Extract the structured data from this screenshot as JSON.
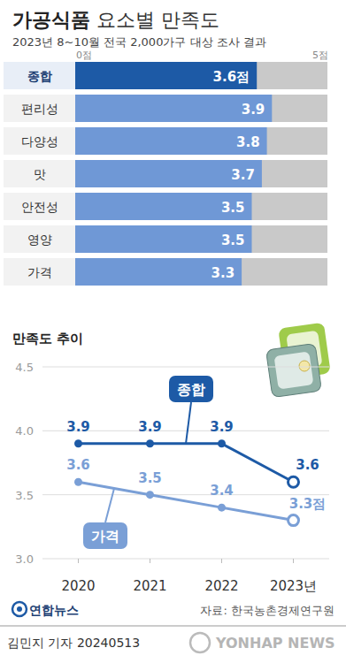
{
  "chart_data": [
    {
      "type": "bar",
      "title": "가공식품 요소별 만족도",
      "subtitle": "2023년 8~10월 전국 2,000가구 대상 조사 결과",
      "orientation": "horizontal",
      "categories": [
        "종합",
        "편리성",
        "다양성",
        "맛",
        "안전성",
        "영양",
        "가격"
      ],
      "values": [
        3.6,
        3.9,
        3.8,
        3.7,
        3.5,
        3.5,
        3.3
      ],
      "value_labels": [
        "3.6점",
        "3.9",
        "3.8",
        "3.7",
        "3.5",
        "3.5",
        "3.3"
      ],
      "colors": [
        "#1d5aa6",
        "#6f98d6",
        "#6f98d6",
        "#6f98d6",
        "#6f98d6",
        "#6f98d6",
        "#6f98d6"
      ],
      "xlim": [
        0,
        5
      ],
      "xticks": [
        {
          "value": 0,
          "label": "0점"
        },
        {
          "value": 5,
          "label": "5점"
        }
      ],
      "data_labels": true
    },
    {
      "type": "line",
      "title": "만족도 추이",
      "categories": [
        "2020",
        "2021",
        "2022",
        "2023년"
      ],
      "series": [
        {
          "name": "종합",
          "color": "#1d5aa6",
          "marker": "circle",
          "values": [
            3.9,
            3.9,
            3.9,
            3.6
          ],
          "value_labels": [
            "3.9",
            "3.9",
            "3.9",
            "3.6"
          ]
        },
        {
          "name": "가격",
          "color": "#7a9fd6",
          "marker": "circle",
          "values": [
            3.6,
            3.5,
            3.4,
            3.3
          ],
          "value_labels": [
            "3.6",
            "3.5",
            "3.4",
            "3.3점"
          ]
        }
      ],
      "ylim": [
        3,
        4.5
      ],
      "yticks": [
        {
          "value": 3,
          "label": "3.0"
        },
        3.5,
        {
          "value": 4,
          "label": "4.0"
        },
        4.5
      ],
      "grid": true,
      "data_labels": true
    }
  ],
  "source": "자료: 한국농촌경제연구원",
  "logo": "연합뉴스",
  "credit": "김민지 기자 20240513",
  "watermark": "YONHAP NEWS"
}
